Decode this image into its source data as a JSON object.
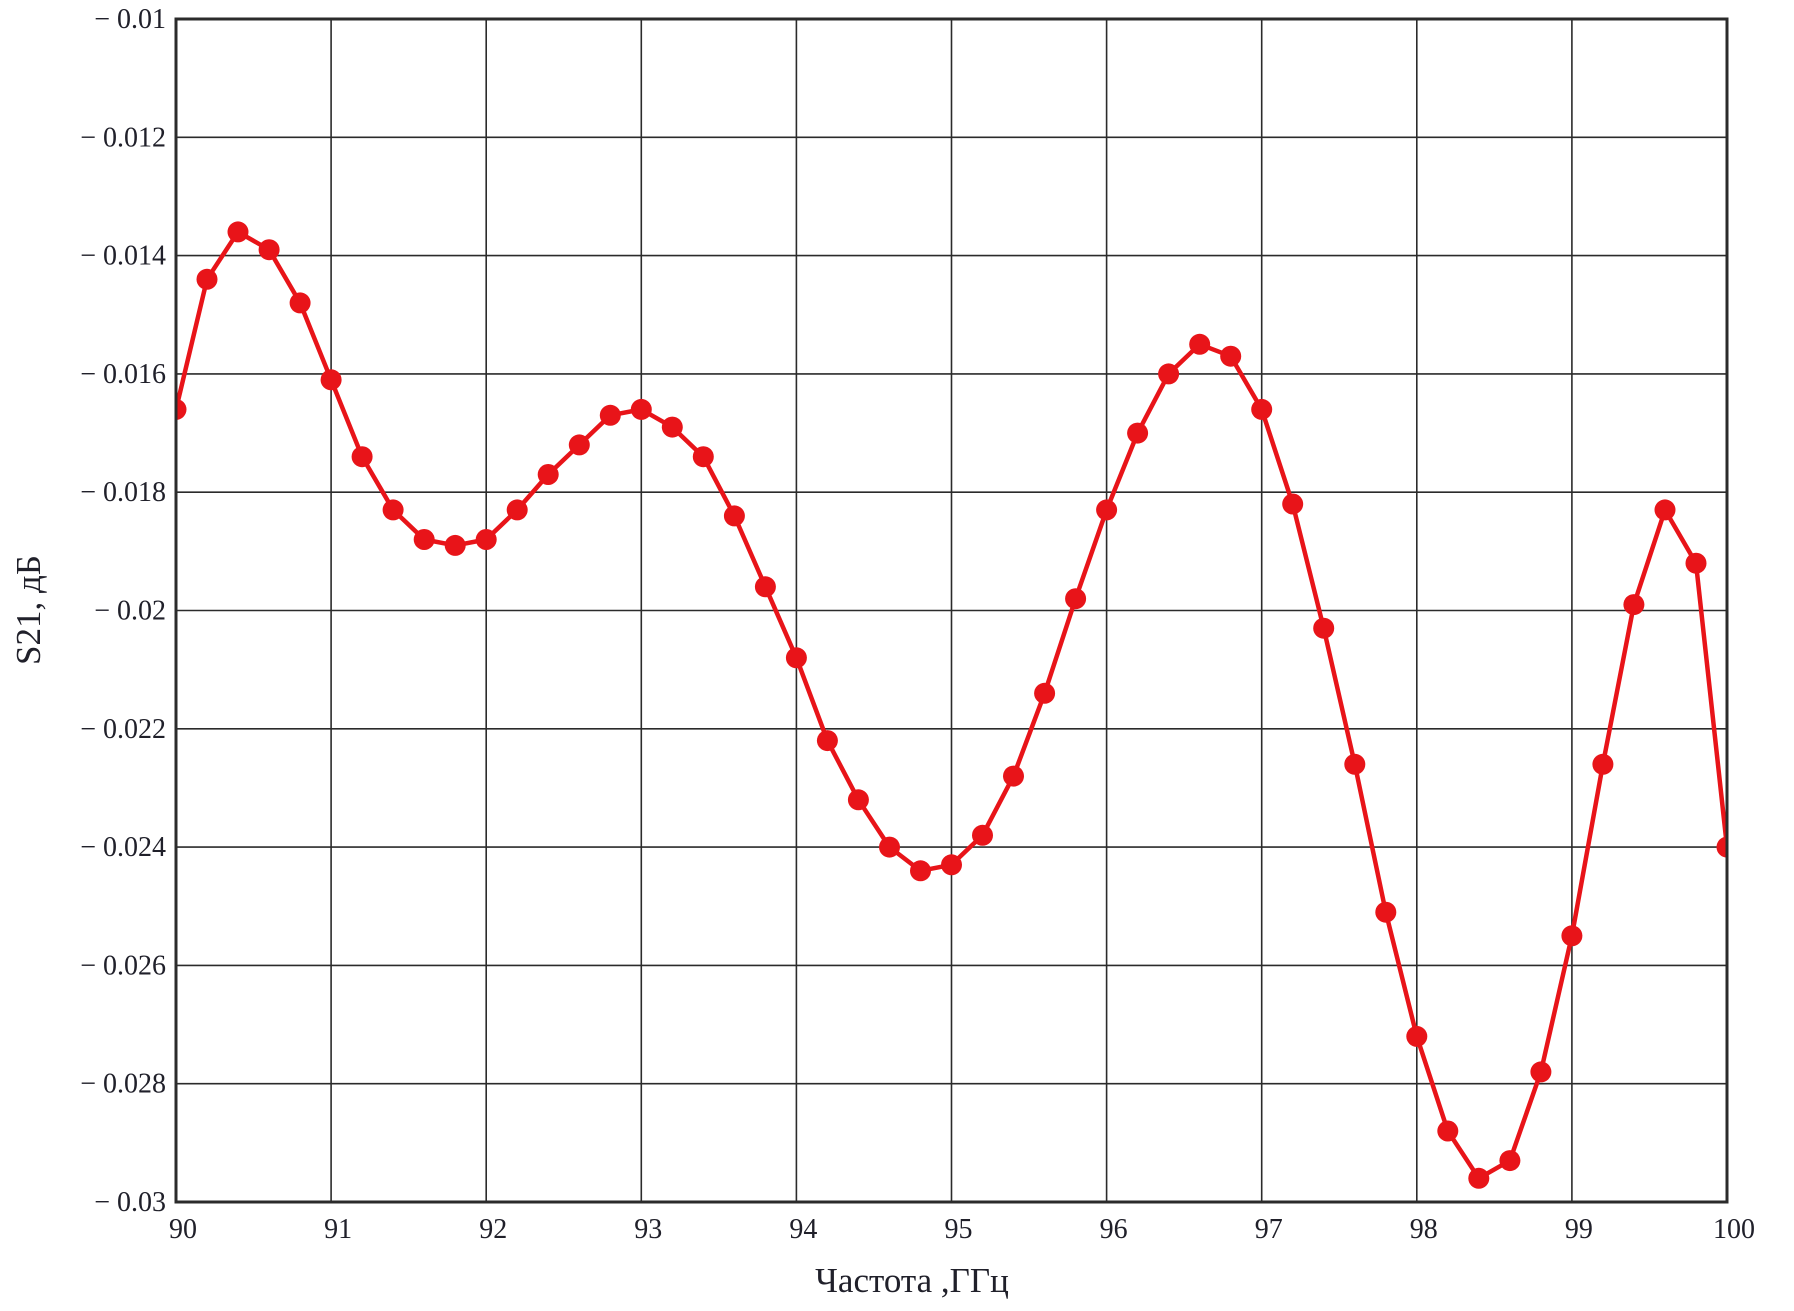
{
  "chart_data": {
    "type": "line",
    "title": "",
    "xlabel": "Частота ,ГГц",
    "ylabel": "S21, дБ",
    "xlim": [
      90,
      100
    ],
    "ylim": [
      -0.03,
      -0.01
    ],
    "grid": true,
    "legend": "none",
    "x_ticks": [
      90,
      91,
      92,
      93,
      94,
      95,
      96,
      97,
      98,
      99,
      100
    ],
    "x_tick_labels": [
      "90",
      "91",
      "92",
      "93",
      "94",
      "95",
      "96",
      "97",
      "98",
      "99",
      "100"
    ],
    "y_ticks": [
      -0.01,
      -0.012,
      -0.014,
      -0.016,
      -0.018,
      -0.02,
      -0.022,
      -0.024,
      -0.026,
      -0.028,
      -0.03
    ],
    "y_tick_labels": [
      "− 0.01",
      "− 0.012",
      "− 0.014",
      "− 0.016",
      "− 0.018",
      "− 0.02",
      "− 0.022",
      "− 0.024",
      "− 0.026",
      "− 0.028",
      "− 0.03"
    ],
    "series": [
      {
        "name": "S21",
        "marker": "circle",
        "x": [
          90.0,
          90.2,
          90.4,
          90.6,
          90.8,
          91.0,
          91.2,
          91.4,
          91.6,
          91.8,
          92.0,
          92.2,
          92.4,
          92.6,
          92.8,
          93.0,
          93.2,
          93.4,
          93.6,
          93.8,
          94.0,
          94.2,
          94.4,
          94.6,
          94.8,
          95.0,
          95.2,
          95.4,
          95.6,
          95.8,
          96.0,
          96.2,
          96.4,
          96.6,
          96.8,
          97.0,
          97.2,
          97.4,
          97.6,
          97.8,
          98.0,
          98.2,
          98.4,
          98.6,
          98.8,
          99.0,
          99.2,
          99.4,
          99.6,
          99.8,
          100.0
        ],
        "y": [
          -0.0166,
          -0.0144,
          -0.0136,
          -0.0139,
          -0.0148,
          -0.0161,
          -0.0174,
          -0.0183,
          -0.0188,
          -0.0189,
          -0.0188,
          -0.0183,
          -0.0177,
          -0.0172,
          -0.0167,
          -0.0166,
          -0.0169,
          -0.0174,
          -0.0184,
          -0.0196,
          -0.0208,
          -0.0222,
          -0.0232,
          -0.024,
          -0.0244,
          -0.0243,
          -0.0238,
          -0.0228,
          -0.0214,
          -0.0198,
          -0.0183,
          -0.017,
          -0.016,
          -0.0155,
          -0.0157,
          -0.0166,
          -0.0182,
          -0.0203,
          -0.0226,
          -0.0251,
          -0.0272,
          -0.0288,
          -0.0296,
          -0.0293,
          -0.0278,
          -0.0255,
          -0.0226,
          -0.0199,
          -0.0183,
          -0.0192,
          -0.024
        ]
      }
    ],
    "colors": {
      "trace": "#e81419",
      "grid": "#2b2b2b",
      "border": "#2b2b2b",
      "text": "#20202a",
      "background": "#ffffff"
    }
  }
}
